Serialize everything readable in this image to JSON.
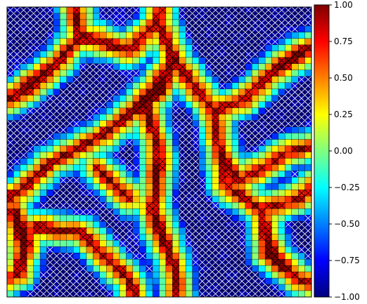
{
  "chart_data": {
    "type": "heatmap",
    "title": "",
    "xlabel": "",
    "ylabel": "",
    "grid": true,
    "grid_size": [
      46,
      46
    ],
    "hatch_overlay": "cells with |value| >= 0.7 are cross-hatched (white on blue, black on red)",
    "colorbar": {
      "colormap": "jet",
      "range": [
        -1.0,
        1.0
      ],
      "ticks": [
        1.0,
        0.75,
        0.5,
        0.25,
        0.0,
        -0.25,
        -0.5,
        -0.75,
        -1.0
      ],
      "tick_labels": [
        "1.00",
        "0.75",
        "0.50",
        "0.25",
        "0.00",
        "−0.25",
        "−0.50",
        "−0.75",
        "−1.00"
      ],
      "placement": "right"
    },
    "field": {
      "description": "Labyrinth-like pattern: blue valleys (~-0.9) separated by orange/red ridges (~0.5-1.0) with yellow-green transition bands.",
      "ridges": [
        [
          [
            0.22,
            0.0
          ],
          [
            0.24,
            0.1
          ],
          [
            0.16,
            0.2
          ],
          [
            0.04,
            0.3
          ],
          [
            0.0,
            0.32
          ]
        ],
        [
          [
            0.24,
            0.1
          ],
          [
            0.4,
            0.15
          ],
          [
            0.5,
            0.05
          ],
          [
            0.5,
            0.0
          ]
        ],
        [
          [
            0.5,
            0.05
          ],
          [
            0.55,
            0.18
          ],
          [
            0.5,
            0.28
          ],
          [
            0.45,
            0.33
          ]
        ],
        [
          [
            0.55,
            0.18
          ],
          [
            0.68,
            0.36
          ],
          [
            0.78,
            0.32
          ],
          [
            0.88,
            0.22
          ],
          [
            1.0,
            0.14
          ]
        ],
        [
          [
            0.68,
            0.36
          ],
          [
            0.7,
            0.5
          ],
          [
            0.76,
            0.6
          ],
          [
            0.85,
            0.55
          ],
          [
            0.92,
            0.5
          ],
          [
            1.0,
            0.48
          ]
        ],
        [
          [
            0.7,
            0.5
          ],
          [
            0.72,
            0.62
          ],
          [
            0.84,
            0.7
          ],
          [
            0.86,
            0.85
          ],
          [
            0.96,
            0.94
          ],
          [
            1.0,
            0.96
          ]
        ],
        [
          [
            0.45,
            0.33
          ],
          [
            0.32,
            0.44
          ],
          [
            0.14,
            0.54
          ],
          [
            0.04,
            0.64
          ],
          [
            0.0,
            0.66
          ]
        ],
        [
          [
            0.45,
            0.33
          ],
          [
            0.5,
            0.5
          ],
          [
            0.48,
            0.7
          ],
          [
            0.55,
            0.9
          ],
          [
            0.56,
            1.0
          ]
        ],
        [
          [
            0.02,
            0.7
          ],
          [
            0.06,
            0.82
          ],
          [
            0.04,
            0.92
          ],
          [
            0.0,
            0.94
          ]
        ],
        [
          [
            0.1,
            0.76
          ],
          [
            0.25,
            0.78
          ],
          [
            0.32,
            0.86
          ],
          [
            0.4,
            0.94
          ],
          [
            0.42,
            1.0
          ]
        ],
        [
          [
            0.3,
            0.56
          ],
          [
            0.36,
            0.62
          ],
          [
            0.4,
            0.66
          ]
        ],
        [
          [
            0.84,
            0.7
          ],
          [
            0.96,
            0.66
          ],
          [
            1.0,
            0.62
          ]
        ]
      ],
      "bumps": [
        [
          0.47,
          0.28,
          0.06,
          1.1
        ],
        [
          0.32,
          0.04,
          0.05,
          0.6
        ],
        [
          0.88,
          0.85,
          0.04,
          1.0
        ],
        [
          0.92,
          0.15,
          0.05,
          0.7
        ],
        [
          0.08,
          0.26,
          0.05,
          0.6
        ],
        [
          0.05,
          0.78,
          0.05,
          0.8
        ],
        [
          0.46,
          0.78,
          0.05,
          0.6
        ],
        [
          0.5,
          0.55,
          0.04,
          0.5
        ],
        [
          0.58,
          0.5,
          0.04,
          -0.4
        ]
      ]
    }
  }
}
